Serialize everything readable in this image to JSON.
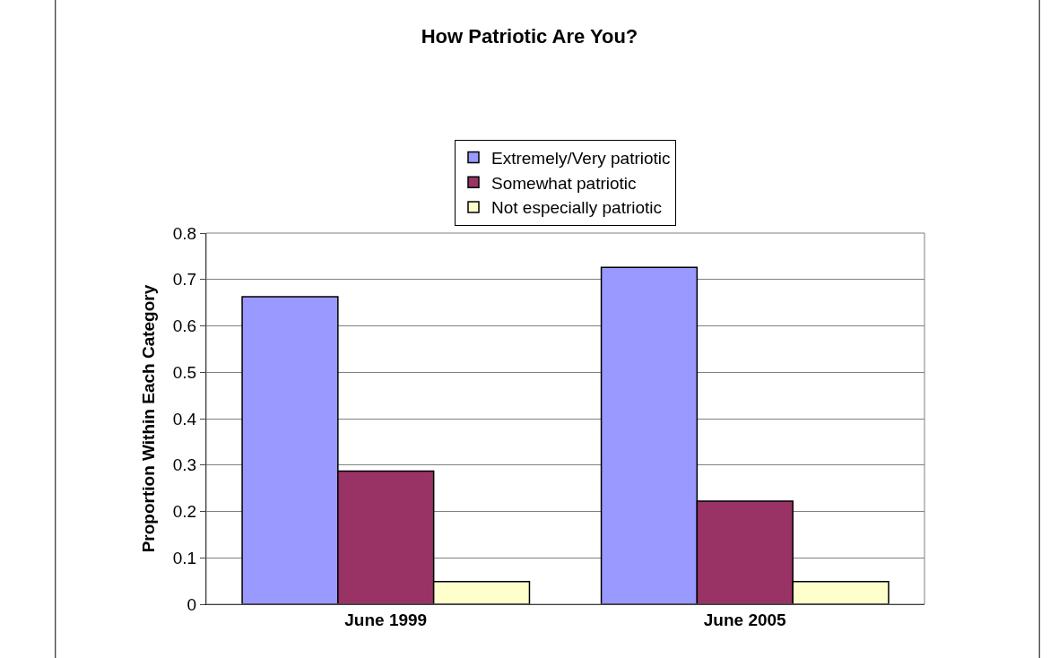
{
  "chart_data": {
    "type": "bar",
    "title": "How Patriotic Are You?",
    "ylabel": "Proportion Within Each Category",
    "categories": [
      "June 1999",
      "June 2005"
    ],
    "series": [
      {
        "name": "Extremely/Very patriotic",
        "color": "#9999ff",
        "values": [
          0.663,
          0.726
        ]
      },
      {
        "name": "Somewhat patriotic",
        "color": "#993366",
        "values": [
          0.287,
          0.222
        ]
      },
      {
        "name": "Not especially patriotic",
        "color": "#ffffcc",
        "values": [
          0.049,
          0.049
        ]
      }
    ],
    "ylim": [
      0,
      0.8
    ],
    "yticks": [
      0,
      0.1,
      0.2,
      0.3,
      0.4,
      0.5,
      0.6,
      0.7,
      0.8
    ],
    "grid": "y",
    "legend": "top"
  }
}
